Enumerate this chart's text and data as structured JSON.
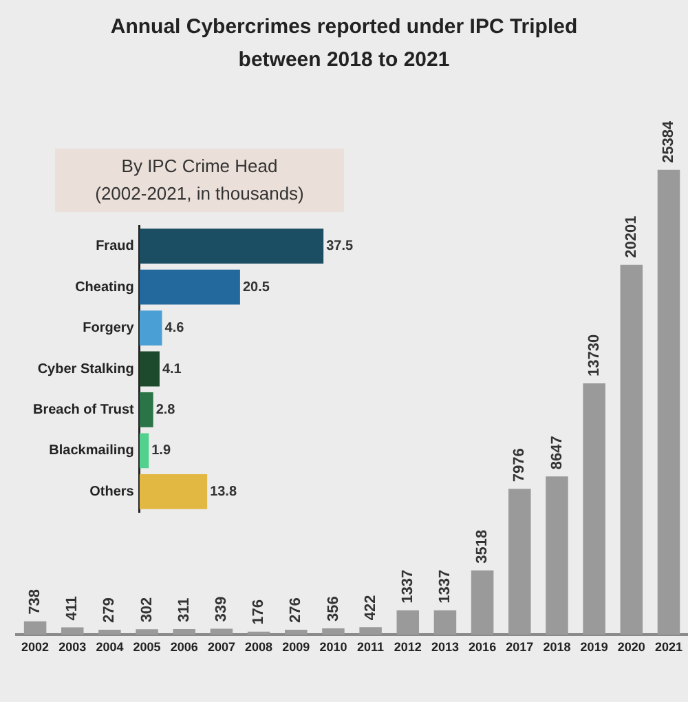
{
  "chart_data": [
    {
      "type": "bar",
      "title": "Annual Cybercrimes reported under IPC Tripled between 2018 to 2021",
      "categories": [
        "2002",
        "2003",
        "2004",
        "2005",
        "2006",
        "2007",
        "2008",
        "2009",
        "2010",
        "2011",
        "2012",
        "2013",
        "2016",
        "2017",
        "2018",
        "2019",
        "2020",
        "2021"
      ],
      "values": [
        738,
        411,
        279,
        302,
        311,
        339,
        176,
        276,
        356,
        422,
        1337,
        1337,
        3518,
        7976,
        8647,
        13730,
        20201,
        25384
      ],
      "color": "#9a9a9a",
      "data_labels": true,
      "tick_labels": "x"
    },
    {
      "type": "bar",
      "orientation": "horizontal",
      "title": "By IPC Crime Head",
      "subtitle": "(2002-2021, in thousands)",
      "categories": [
        "Fraud",
        "Cheating",
        "Forgery",
        "Cyber Stalking",
        "Breach of Trust",
        "Blackmailing",
        "Others"
      ],
      "values": [
        37.5,
        20.5,
        4.6,
        4.1,
        2.8,
        1.9,
        13.8
      ],
      "colors": [
        "#1b4d63",
        "#23699e",
        "#4a9fd4",
        "#1d4a2c",
        "#2a7447",
        "#52d08e",
        "#e2b843"
      ],
      "data_labels": true,
      "tick_labels": "y"
    }
  ]
}
